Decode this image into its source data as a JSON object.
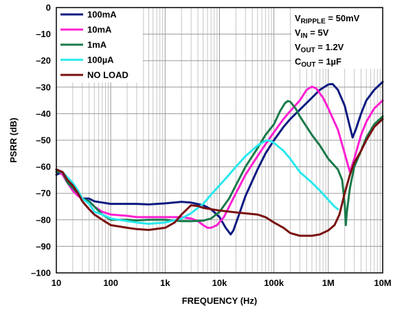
{
  "chart_data": {
    "type": "line",
    "xlabel": "FREQUENCY (Hz)",
    "ylabel": "PSRR (dB)",
    "xscale": "log",
    "xlim": [
      10,
      10000000
    ],
    "ylim": [
      -100,
      0
    ],
    "grid": true,
    "legend_position": "top-left",
    "x_ticks": [
      {
        "value": 10,
        "label": "10"
      },
      {
        "value": 100,
        "label": "100"
      },
      {
        "value": 1000,
        "label": "1k"
      },
      {
        "value": 10000,
        "label": "10k"
      },
      {
        "value": 100000,
        "label": "100k"
      },
      {
        "value": 1000000,
        "label": "1M"
      },
      {
        "value": 10000000,
        "label": "10M"
      }
    ],
    "y_ticks": [
      {
        "value": 0,
        "label": "0"
      },
      {
        "value": -10,
        "label": "–10"
      },
      {
        "value": -20,
        "label": "–20"
      },
      {
        "value": -30,
        "label": "–30"
      },
      {
        "value": -40,
        "label": "–40"
      },
      {
        "value": -50,
        "label": "–50"
      },
      {
        "value": -60,
        "label": "–60"
      },
      {
        "value": -70,
        "label": "–70"
      },
      {
        "value": -80,
        "label": "–80"
      },
      {
        "value": -90,
        "label": "–90"
      },
      {
        "value": -100,
        "label": "–100"
      }
    ],
    "annotations": [
      {
        "main": "V",
        "sub": "RIPPLE",
        "rest": " = 50mV"
      },
      {
        "main": "V",
        "sub": "IN",
        "rest": " = 5V"
      },
      {
        "main": "V",
        "sub": "OUT",
        "rest": " = 1.2V"
      },
      {
        "main": "C",
        "sub": "OUT",
        "rest": " = 1µF"
      }
    ],
    "series": [
      {
        "name": "100mA",
        "color": "#0a1a80",
        "points": [
          [
            10,
            -63
          ],
          [
            13,
            -62
          ],
          [
            16,
            -65
          ],
          [
            20,
            -68
          ],
          [
            25,
            -70
          ],
          [
            30,
            -72
          ],
          [
            40,
            -72
          ],
          [
            50,
            -73
          ],
          [
            70,
            -73.5
          ],
          [
            100,
            -74
          ],
          [
            200,
            -74
          ],
          [
            300,
            -74
          ],
          [
            500,
            -74.2
          ],
          [
            1000,
            -73.8
          ],
          [
            2000,
            -73.2
          ],
          [
            3000,
            -73.5
          ],
          [
            5000,
            -74.5
          ],
          [
            7000,
            -76
          ],
          [
            10000,
            -79
          ],
          [
            13000,
            -83
          ],
          [
            16000,
            -85.5
          ],
          [
            18000,
            -84
          ],
          [
            22000,
            -79
          ],
          [
            30000,
            -71
          ],
          [
            50000,
            -61
          ],
          [
            70000,
            -55
          ],
          [
            100000,
            -50
          ],
          [
            150000,
            -45
          ],
          [
            200000,
            -42
          ],
          [
            300000,
            -38.5
          ],
          [
            500000,
            -34
          ],
          [
            700000,
            -31
          ],
          [
            1000000,
            -29
          ],
          [
            1200000,
            -28.8
          ],
          [
            1500000,
            -31
          ],
          [
            2000000,
            -37
          ],
          [
            2500000,
            -45
          ],
          [
            2800000,
            -49
          ],
          [
            3200000,
            -46
          ],
          [
            4000000,
            -40
          ],
          [
            5000000,
            -35
          ],
          [
            7000000,
            -31
          ],
          [
            10000000,
            -28
          ]
        ]
      },
      {
        "name": "10mA",
        "color": "#ff1fd2",
        "points": [
          [
            10,
            -61
          ],
          [
            13,
            -63
          ],
          [
            16,
            -66
          ],
          [
            20,
            -69
          ],
          [
            25,
            -71
          ],
          [
            30,
            -72
          ],
          [
            40,
            -73
          ],
          [
            50,
            -75
          ],
          [
            70,
            -77
          ],
          [
            100,
            -78
          ],
          [
            200,
            -78.5
          ],
          [
            300,
            -79
          ],
          [
            500,
            -79
          ],
          [
            1000,
            -79
          ],
          [
            2000,
            -79
          ],
          [
            3000,
            -79.5
          ],
          [
            4000,
            -80.5
          ],
          [
            5000,
            -82
          ],
          [
            6000,
            -83
          ],
          [
            7000,
            -83
          ],
          [
            9000,
            -82
          ],
          [
            12000,
            -79
          ],
          [
            20000,
            -70
          ],
          [
            30000,
            -63
          ],
          [
            50000,
            -56
          ],
          [
            70000,
            -51.5
          ],
          [
            100000,
            -47
          ],
          [
            150000,
            -42
          ],
          [
            200000,
            -39
          ],
          [
            300000,
            -35
          ],
          [
            400000,
            -31
          ],
          [
            500000,
            -29.8
          ],
          [
            600000,
            -30.5
          ],
          [
            800000,
            -34
          ],
          [
            1000000,
            -38
          ],
          [
            1500000,
            -46
          ],
          [
            2000000,
            -55
          ],
          [
            2500000,
            -62
          ],
          [
            3000000,
            -57
          ],
          [
            4000000,
            -48
          ],
          [
            5000000,
            -43
          ],
          [
            7000000,
            -38
          ],
          [
            10000000,
            -35
          ]
        ]
      },
      {
        "name": "1mA",
        "color": "#1a7a4a",
        "points": [
          [
            10,
            -62
          ],
          [
            13,
            -62
          ],
          [
            16,
            -66
          ],
          [
            20,
            -68
          ],
          [
            25,
            -70
          ],
          [
            30,
            -72
          ],
          [
            40,
            -73
          ],
          [
            50,
            -75
          ],
          [
            70,
            -78
          ],
          [
            100,
            -80
          ],
          [
            200,
            -80
          ],
          [
            300,
            -80.2
          ],
          [
            500,
            -80
          ],
          [
            1000,
            -80
          ],
          [
            2000,
            -80.5
          ],
          [
            3000,
            -80.5
          ],
          [
            5000,
            -80.3
          ],
          [
            7000,
            -79.5
          ],
          [
            10000,
            -77
          ],
          [
            15000,
            -72
          ],
          [
            20000,
            -67
          ],
          [
            30000,
            -60
          ],
          [
            50000,
            -53
          ],
          [
            70000,
            -48
          ],
          [
            100000,
            -44
          ],
          [
            130000,
            -39
          ],
          [
            160000,
            -36
          ],
          [
            180000,
            -35.2
          ],
          [
            200000,
            -35.5
          ],
          [
            250000,
            -38
          ],
          [
            300000,
            -41
          ],
          [
            500000,
            -48
          ],
          [
            700000,
            -52
          ],
          [
            1000000,
            -57
          ],
          [
            1500000,
            -61
          ],
          [
            1800000,
            -65
          ],
          [
            2000000,
            -74
          ],
          [
            2100000,
            -82
          ],
          [
            2200000,
            -77
          ],
          [
            2500000,
            -68
          ],
          [
            3000000,
            -60
          ],
          [
            4000000,
            -54
          ],
          [
            5000000,
            -49
          ],
          [
            7000000,
            -44
          ],
          [
            10000000,
            -41
          ]
        ]
      },
      {
        "name": "100µA",
        "color": "#28e8ee",
        "points": [
          [
            10,
            -61
          ],
          [
            13,
            -62
          ],
          [
            16,
            -64
          ],
          [
            20,
            -66
          ],
          [
            25,
            -69
          ],
          [
            30,
            -72
          ],
          [
            40,
            -74
          ],
          [
            50,
            -77
          ],
          [
            70,
            -78
          ],
          [
            100,
            -79.5
          ],
          [
            200,
            -80.5
          ],
          [
            300,
            -81
          ],
          [
            500,
            -81.5
          ],
          [
            1000,
            -81
          ],
          [
            2000,
            -79.5
          ],
          [
            3000,
            -77.5
          ],
          [
            5000,
            -74
          ],
          [
            7000,
            -70.5
          ],
          [
            10000,
            -67
          ],
          [
            15000,
            -63
          ],
          [
            20000,
            -60
          ],
          [
            30000,
            -56
          ],
          [
            50000,
            -52
          ],
          [
            70000,
            -50.2
          ],
          [
            80000,
            -50
          ],
          [
            100000,
            -51
          ],
          [
            150000,
            -54
          ],
          [
            200000,
            -57
          ],
          [
            300000,
            -62
          ],
          [
            500000,
            -66
          ],
          [
            700000,
            -69
          ],
          [
            1000000,
            -72.5
          ],
          [
            1300000,
            -75
          ],
          [
            1500000,
            -76
          ]
        ]
      },
      {
        "name": "NO LOAD",
        "color": "#7a1010",
        "points": [
          [
            10,
            -61
          ],
          [
            13,
            -62
          ],
          [
            16,
            -65
          ],
          [
            20,
            -67
          ],
          [
            25,
            -70
          ],
          [
            30,
            -73
          ],
          [
            40,
            -76
          ],
          [
            50,
            -78
          ],
          [
            70,
            -80
          ],
          [
            100,
            -82
          ],
          [
            200,
            -83
          ],
          [
            300,
            -83.5
          ],
          [
            500,
            -83.8
          ],
          [
            1000,
            -83
          ],
          [
            1500,
            -81
          ],
          [
            2000,
            -78
          ],
          [
            3000,
            -74.5
          ],
          [
            4000,
            -74.8
          ],
          [
            5000,
            -75.5
          ],
          [
            7000,
            -76
          ],
          [
            10000,
            -76.5
          ],
          [
            20000,
            -77.2
          ],
          [
            50000,
            -78
          ],
          [
            70000,
            -79
          ],
          [
            100000,
            -81
          ],
          [
            150000,
            -83
          ],
          [
            200000,
            -85
          ],
          [
            300000,
            -86
          ],
          [
            500000,
            -86
          ],
          [
            700000,
            -85.5
          ],
          [
            1000000,
            -84
          ],
          [
            1300000,
            -82
          ],
          [
            1600000,
            -78
          ],
          [
            2000000,
            -70
          ],
          [
            2500000,
            -63
          ],
          [
            3000000,
            -58.5
          ],
          [
            4000000,
            -54
          ],
          [
            5000000,
            -50
          ],
          [
            7000000,
            -45
          ],
          [
            10000000,
            -42
          ]
        ]
      }
    ]
  }
}
